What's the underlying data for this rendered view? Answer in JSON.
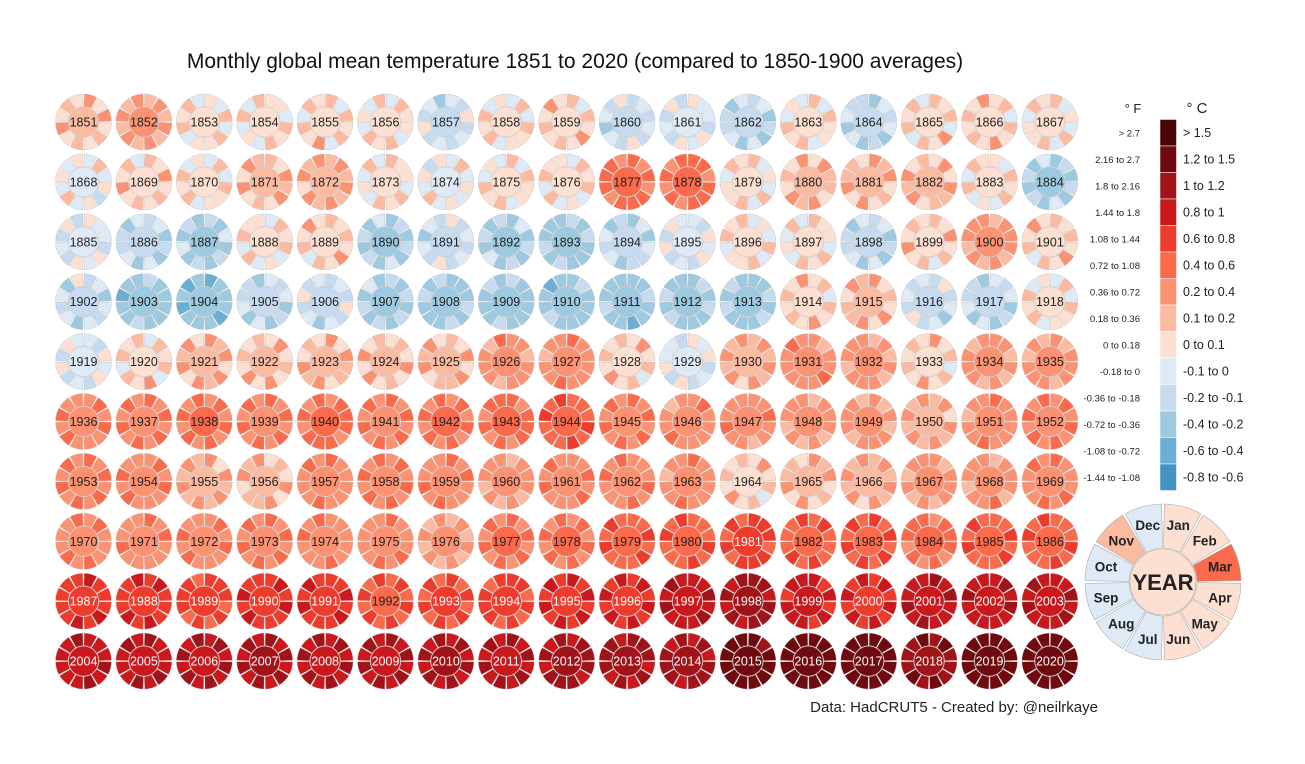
{
  "chart_data": {
    "type": "radial-heatmap",
    "title": "Monthly global mean temperature 1851 to 2020 (compared to 1850-1900 averages)",
    "years_range": [
      1851,
      2020
    ],
    "columns": 17,
    "months": [
      "Jan",
      "Feb",
      "Mar",
      "Apr",
      "May",
      "Jun",
      "Jul",
      "Aug",
      "Sep",
      "Oct",
      "Nov",
      "Dec"
    ],
    "year_center_label": "YEAR",
    "annual_anomaly_c": [
      0.12,
      0.22,
      0.05,
      0.05,
      0.08,
      0.05,
      -0.1,
      0.05,
      0.1,
      -0.1,
      -0.05,
      -0.15,
      0.05,
      -0.15,
      0.08,
      0.1,
      0.05,
      0.0,
      0.1,
      0.05,
      0.15,
      0.2,
      0.05,
      0.0,
      0.05,
      0.05,
      0.45,
      0.45,
      0.05,
      0.15,
      0.15,
      0.15,
      0.05,
      -0.2,
      -0.05,
      -0.15,
      -0.2,
      0.05,
      0.1,
      -0.2,
      -0.1,
      -0.2,
      -0.25,
      -0.15,
      -0.05,
      0.05,
      0.05,
      -0.15,
      0.1,
      0.25,
      0.1,
      -0.12,
      -0.3,
      -0.35,
      -0.15,
      -0.1,
      -0.22,
      -0.25,
      -0.28,
      -0.3,
      -0.3,
      -0.25,
      -0.25,
      0.1,
      0.15,
      -0.1,
      -0.15,
      0.05,
      -0.05,
      0.08,
      0.18,
      0.12,
      0.15,
      0.12,
      0.15,
      0.28,
      0.3,
      0.1,
      -0.05,
      0.2,
      0.3,
      0.25,
      0.1,
      0.25,
      0.25,
      0.35,
      0.4,
      0.42,
      0.4,
      0.45,
      0.4,
      0.42,
      0.45,
      0.52,
      0.4,
      0.3,
      0.3,
      0.25,
      0.25,
      0.2,
      0.3,
      0.38,
      0.38,
      0.35,
      0.2,
      0.15,
      0.32,
      0.38,
      0.35,
      0.25,
      0.35,
      0.35,
      0.3,
      0.1,
      0.15,
      0.2,
      0.25,
      0.28,
      0.35,
      0.35,
      0.32,
      0.35,
      0.4,
      0.32,
      0.32,
      0.22,
      0.42,
      0.42,
      0.55,
      0.55,
      0.65,
      0.52,
      0.58,
      0.45,
      0.55,
      0.55,
      0.72,
      0.75,
      0.65,
      0.75,
      0.75,
      0.6,
      0.62,
      0.65,
      0.8,
      0.8,
      0.95,
      1.05,
      0.85,
      0.8,
      0.95,
      0.92,
      0.95,
      0.92,
      0.95,
      1.0,
      1.02,
      1.0,
      1.0,
      1.02,
      1.0,
      1.05,
      1.05,
      1.05,
      1.3,
      1.32,
      1.32,
      1.15,
      1.35,
      1.32
    ],
    "legend": {
      "header_f": "° F",
      "header_c": "° C",
      "bins": [
        {
          "c": "> 1.5",
          "f": "> 2.7",
          "color": "#4a0406"
        },
        {
          "c": "1.2 to 1.5",
          "f": "2.16 to 2.7",
          "color": "#700a0f"
        },
        {
          "c": "1 to 1.2",
          "f": "1.8 to 2.16",
          "color": "#a11318"
        },
        {
          "c": "0.8 to 1",
          "f": "1.44 to 1.8",
          "color": "#cb181d"
        },
        {
          "c": "0.6 to 0.8",
          "f": "1.08 to 1.44",
          "color": "#ef3b2c"
        },
        {
          "c": "0.4 to 0.6",
          "f": "0.72 to 1.08",
          "color": "#fb6a4a"
        },
        {
          "c": "0.2 to 0.4",
          "f": "0.36 to 0.72",
          "color": "#fc9272"
        },
        {
          "c": "0.1 to 0.2",
          "f": "0.18 to 0.36",
          "color": "#fcbba1"
        },
        {
          "c": "0 to 0.1",
          "f": "0 to 0.18",
          "color": "#fee0d2"
        },
        {
          "c": "-0.1 to 0",
          "f": "-0.18 to 0",
          "color": "#deebf7"
        },
        {
          "c": "-0.2 to -0.1",
          "f": "-0.36 to -0.18",
          "color": "#c6dbef"
        },
        {
          "c": "-0.4 to -0.2",
          "f": "-0.72 to -0.36",
          "color": "#9ecae1"
        },
        {
          "c": "-0.6 to -0.4",
          "f": "-1.08 to -0.72",
          "color": "#6baed6"
        },
        {
          "c": "-0.8 to -0.6",
          "f": "-1.44 to -1.08",
          "color": "#4292c6"
        }
      ]
    },
    "example_wheel_month_colors": [
      "#fee0d2",
      "#fee0d2",
      "#fb6a4a",
      "#fee0d2",
      "#fee0d2",
      "#fee0d2",
      "#deebf7",
      "#deebf7",
      "#deebf7",
      "#deebf7",
      "#fcbba1",
      "#deebf7"
    ],
    "example_wheel_year_color": "#fee0d2"
  },
  "credit": "Data: HadCRUT5  -   Created by: @neilrkaye"
}
